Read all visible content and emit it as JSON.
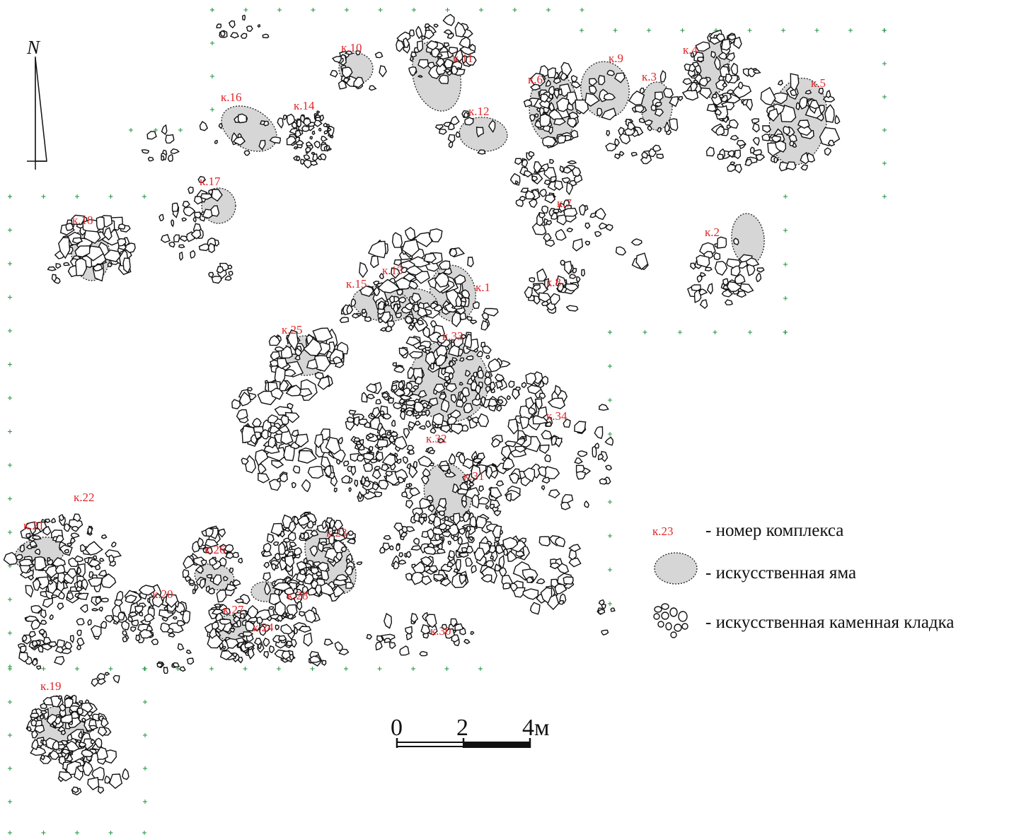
{
  "north": {
    "letter": "N"
  },
  "complexes": [
    {
      "id": "k1",
      "label": "к.1"
    },
    {
      "id": "k2",
      "label": "к.2"
    },
    {
      "id": "k3",
      "label": "к.3"
    },
    {
      "id": "k4",
      "label": "к.4"
    },
    {
      "id": "k5",
      "label": "к.5"
    },
    {
      "id": "k6",
      "label": "к.6"
    },
    {
      "id": "k7",
      "label": "к.7"
    },
    {
      "id": "k8",
      "label": "к.8"
    },
    {
      "id": "k9",
      "label": "к.9"
    },
    {
      "id": "k10",
      "label": "к.10"
    },
    {
      "id": "k11",
      "label": "к.11"
    },
    {
      "id": "k12",
      "label": "к.12"
    },
    {
      "id": "k13",
      "label": "к.13"
    },
    {
      "id": "k14",
      "label": "к.14"
    },
    {
      "id": "k15",
      "label": "к.15"
    },
    {
      "id": "k16",
      "label": "к.16"
    },
    {
      "id": "k17",
      "label": "к.17"
    },
    {
      "id": "k18",
      "label": "к.18"
    },
    {
      "id": "k19",
      "label": "к.19"
    },
    {
      "id": "k20",
      "label": "к.20"
    },
    {
      "id": "k21",
      "label": "к.21"
    },
    {
      "id": "k22",
      "label": "к.22"
    },
    {
      "id": "k23",
      "label": "к.23"
    },
    {
      "id": "k24",
      "label": "к.24"
    },
    {
      "id": "k25",
      "label": "к.25"
    },
    {
      "id": "k26",
      "label": "к.26"
    },
    {
      "id": "k27",
      "label": "к.27"
    },
    {
      "id": "k28",
      "label": "к.28"
    },
    {
      "id": "k30",
      "label": "к.30"
    },
    {
      "id": "k31",
      "label": "к.31"
    },
    {
      "id": "k32",
      "label": "к.32"
    },
    {
      "id": "k33",
      "label": "к.33"
    },
    {
      "id": "k34",
      "label": "к.34"
    }
  ],
  "legend": {
    "complex_sample": "к.23",
    "complex_text": "- номер комплекса",
    "pit_text": "- искусственная яма",
    "masonry_text": "- искусственная каменная кладка"
  },
  "scale": {
    "labels": [
      "0",
      "2",
      "4м"
    ]
  },
  "colors": {
    "label": "#e0262a",
    "pit_fill": "#d6d6d6",
    "grid_marks": "#2e9a4a"
  }
}
